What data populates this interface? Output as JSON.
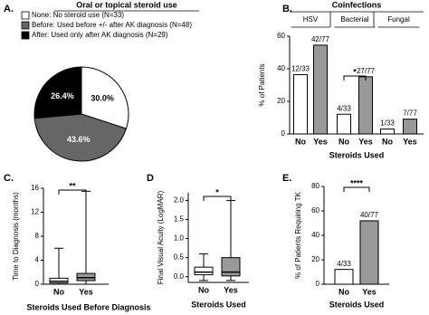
{
  "chart_data": [
    {
      "type": "pie",
      "panel": "A.",
      "title": "Oral or topical steroid use",
      "labels": [
        "None: No steroid use (N=33)",
        "Before: Used before +/- after AK diagnosis (N=48)",
        "After: Used only after AK diagnosis (N=29)"
      ],
      "values": [
        30.0,
        43.6,
        26.4
      ],
      "value_labels": [
        "30.0%",
        "43.6%",
        "26.4%"
      ],
      "colors": [
        "#ffffff",
        "#666666",
        "#000000"
      ]
    },
    {
      "type": "bar",
      "panel": "B.",
      "title": "Coinfections",
      "groups": [
        "HSV",
        "Bacterial",
        "Fungal"
      ],
      "categories": [
        "No",
        "Yes",
        "No",
        "Yes",
        "No",
        "Yes"
      ],
      "values": [
        36.4,
        54.5,
        12.1,
        35.1,
        3.0,
        9.1
      ],
      "value_labels": [
        "12/33",
        "42/77",
        "4/33",
        "27/77",
        "1/33",
        "7/77"
      ],
      "colors": [
        "#ffffff",
        "#999999",
        "#ffffff",
        "#999999",
        "#ffffff",
        "#999999"
      ],
      "ylabel": "% of Patients",
      "xlabel": "Steroids Used",
      "ylim": [
        0,
        60
      ],
      "yticks": [
        0,
        20,
        40,
        60
      ],
      "annotation": "*"
    },
    {
      "type": "box",
      "panel": "C.",
      "categories": [
        "No",
        "Yes"
      ],
      "boxes": [
        {
          "min": 0,
          "q1": 0.2,
          "median": 0.5,
          "q3": 1.0,
          "max": 6.0
        },
        {
          "min": 0,
          "q1": 0.6,
          "median": 1.1,
          "q3": 1.8,
          "max": 15.5
        }
      ],
      "colors": [
        "#ffffff",
        "#999999"
      ],
      "ylabel": "Time to Diagnosis (months)",
      "xlabel": "Steroids Used Before Diagnosis",
      "ylim": [
        0,
        16
      ],
      "yticks": [
        0,
        4,
        8,
        12,
        16
      ],
      "annotation": "**"
    },
    {
      "type": "box",
      "panel": "D",
      "categories": [
        "No",
        "Yes"
      ],
      "boxes": [
        {
          "min": -0.1,
          "q1": 0.05,
          "median": 0.12,
          "q3": 0.25,
          "max": 0.6
        },
        {
          "min": -0.1,
          "q1": 0.02,
          "median": 0.12,
          "q3": 0.5,
          "max": 2.0
        }
      ],
      "colors": [
        "#ffffff",
        "#999999"
      ],
      "ylabel": "Final Visual Acuity (LogMAR)",
      "xlabel": "Steroids Used",
      "ylim": [
        -0.15,
        2.2
      ],
      "yticks": [
        {
          "value": 0,
          "label": "0.0"
        },
        0.5,
        {
          "value": 1,
          "label": "1.0"
        },
        1.5,
        {
          "value": 2,
          "label": "2.0"
        }
      ],
      "annotation": "*"
    },
    {
      "type": "bar",
      "panel": "E.",
      "categories": [
        "No",
        "Yes"
      ],
      "values": [
        12.1,
        51.9
      ],
      "value_labels": [
        "4/33",
        "40/77"
      ],
      "colors": [
        "#ffffff",
        "#999999"
      ],
      "ylabel": "% of Patients Requiring TK",
      "xlabel": "Steroids Used",
      "ylim": [
        0,
        80
      ],
      "yticks": [
        0,
        20,
        40,
        60,
        80
      ],
      "annotation": "****"
    }
  ]
}
